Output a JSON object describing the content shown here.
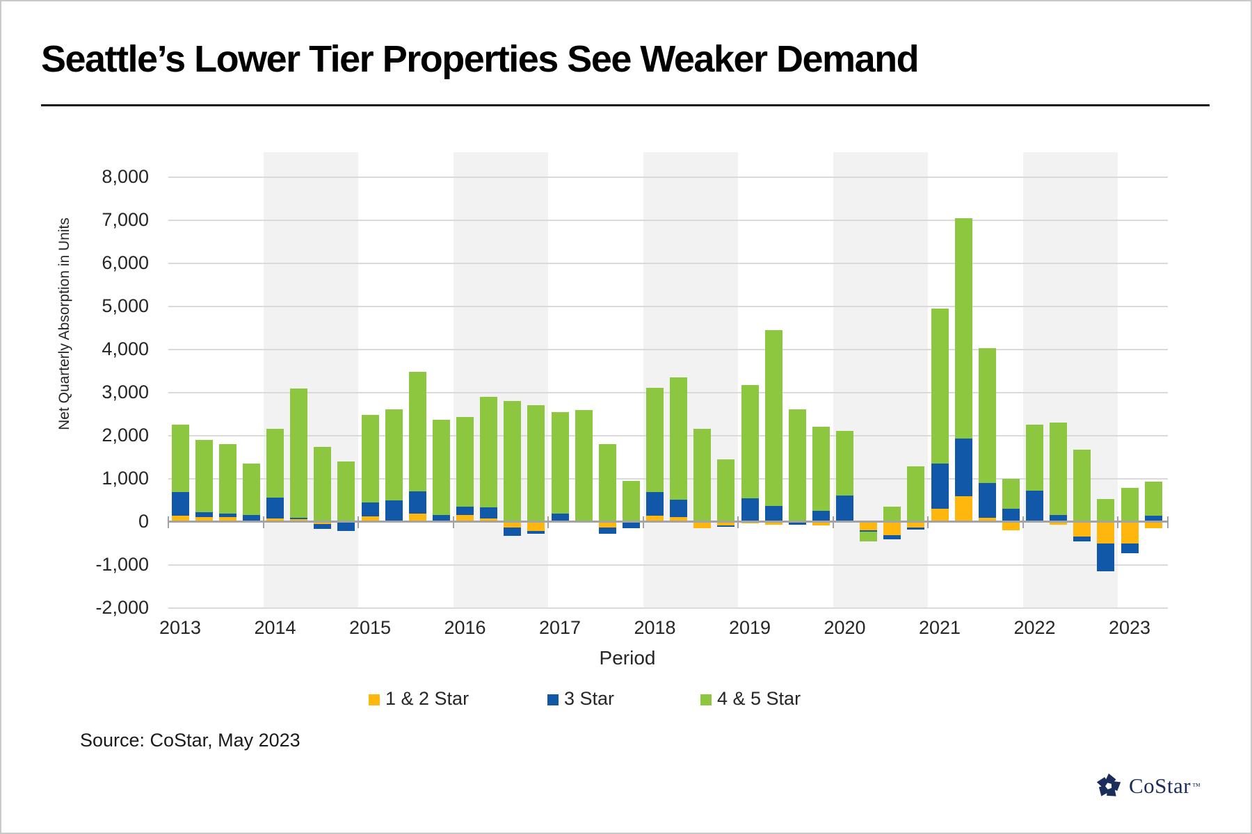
{
  "title": "Seattle’s Lower Tier Properties See Weaker Demand",
  "source": "Source: CoStar, May 2023",
  "brand": {
    "name": "CoStar",
    "tm": "™"
  },
  "chart_data": {
    "type": "bar",
    "subtype": "stacked-column",
    "title": "Seattle’s Lower Tier Properties See Weaker Demand",
    "xlabel": "Period",
    "ylabel": "Net Quarterly Absorption in Units",
    "ylim": [
      -2000,
      8000
    ],
    "ytick_step": 1000,
    "ytick_labels": [
      "8,000",
      "7,000",
      "6,000",
      "5,000",
      "4,000",
      "3,000",
      "2,000",
      "1,000",
      "0",
      "-1,000",
      "-2,000"
    ],
    "grid": true,
    "legend_position": "bottom",
    "years": [
      2013,
      2014,
      2015,
      2016,
      2017,
      2018,
      2019,
      2020,
      2021,
      2022,
      2023
    ],
    "shaded_years": [
      2014,
      2016,
      2018,
      2020,
      2022
    ],
    "series": [
      {
        "name": "1 & 2 Star",
        "color": "#FFB60D"
      },
      {
        "name": "3 Star",
        "color": "#1159A8"
      },
      {
        "name": "4 & 5 Star",
        "color": "#8DC63F"
      }
    ],
    "points": [
      {
        "period": "2013 Q1",
        "v": [
          130,
          550,
          1570
        ]
      },
      {
        "period": "2013 Q2",
        "v": [
          105,
          105,
          1690
        ]
      },
      {
        "period": "2013 Q3",
        "v": [
          100,
          90,
          1610
        ]
      },
      {
        "period": "2013 Q4",
        "v": [
          30,
          130,
          1180
        ]
      },
      {
        "period": "2014 Q1",
        "v": [
          65,
          495,
          1590
        ]
      },
      {
        "period": "2014 Q2",
        "v": [
          75,
          15,
          3000
        ]
      },
      {
        "period": "2014 Q3",
        "v": [
          -60,
          -115,
          1740
        ]
      },
      {
        "period": "2014 Q4",
        "v": [
          -30,
          -195,
          1400
        ]
      },
      {
        "period": "2015 Q1",
        "v": [
          120,
          330,
          2030
        ]
      },
      {
        "period": "2015 Q2",
        "v": [
          30,
          465,
          2105
        ]
      },
      {
        "period": "2015 Q3",
        "v": [
          185,
          510,
          2775
        ]
      },
      {
        "period": "2015 Q4",
        "v": [
          20,
          135,
          2205
        ]
      },
      {
        "period": "2016 Q1",
        "v": [
          150,
          200,
          2070
        ]
      },
      {
        "period": "2016 Q2",
        "v": [
          75,
          260,
          2555
        ]
      },
      {
        "period": "2016 Q3",
        "v": [
          -140,
          -185,
          2805
        ]
      },
      {
        "period": "2016 Q4",
        "v": [
          -220,
          -55,
          2700
        ]
      },
      {
        "period": "2017 Q1",
        "v": [
          25,
          160,
          2355
        ]
      },
      {
        "period": "2017 Q2",
        "v": [
          0,
          30,
          2560
        ]
      },
      {
        "period": "2017 Q3",
        "v": [
          -130,
          -150,
          1800
        ]
      },
      {
        "period": "2017 Q4",
        "v": [
          -15,
          -140,
          950
        ]
      },
      {
        "period": "2018 Q1",
        "v": [
          140,
          545,
          2415
        ]
      },
      {
        "period": "2018 Q2",
        "v": [
          100,
          405,
          2845
        ]
      },
      {
        "period": "2018 Q3",
        "v": [
          -150,
          25,
          2130
        ]
      },
      {
        "period": "2018 Q4",
        "v": [
          -95,
          -30,
          1450
        ]
      },
      {
        "period": "2019 Q1",
        "v": [
          -25,
          545,
          2625
        ]
      },
      {
        "period": "2019 Q2",
        "v": [
          -75,
          370,
          4080
        ]
      },
      {
        "period": "2019 Q3",
        "v": [
          30,
          -70,
          2575
        ]
      },
      {
        "period": "2019 Q4",
        "v": [
          -95,
          250,
          1950
        ]
      },
      {
        "period": "2020 Q1",
        "v": [
          0,
          610,
          1490
        ]
      },
      {
        "period": "2020 Q2",
        "v": [
          -195,
          -45,
          -215
        ]
      },
      {
        "period": "2020 Q3",
        "v": [
          -310,
          -105,
          345
        ]
      },
      {
        "period": "2020 Q4",
        "v": [
          -140,
          -40,
          1275
        ]
      },
      {
        "period": "2021 Q1",
        "v": [
          300,
          1040,
          3610
        ]
      },
      {
        "period": "2021 Q2",
        "v": [
          585,
          1335,
          5120
        ]
      },
      {
        "period": "2021 Q3",
        "v": [
          90,
          800,
          3135
        ]
      },
      {
        "period": "2021 Q4",
        "v": [
          -200,
          300,
          700
        ]
      },
      {
        "period": "2022 Q1",
        "v": [
          0,
          710,
          1535
        ]
      },
      {
        "period": "2022 Q2",
        "v": [
          -75,
          155,
          2140
        ]
      },
      {
        "period": "2022 Q3",
        "v": [
          -345,
          -120,
          1665
        ]
      },
      {
        "period": "2022 Q4",
        "v": [
          -505,
          -645,
          525
        ]
      },
      {
        "period": "2023 Q1",
        "v": [
          -500,
          -230,
          775
        ]
      },
      {
        "period": "2023 Q2",
        "v": [
          -160,
          130,
          790
        ]
      }
    ],
    "colors": {
      "gridline": "#dadada",
      "axis": "#a3a3a3",
      "year_band": "#f2f2f2",
      "logo_navy": "#1b2d5b"
    }
  }
}
